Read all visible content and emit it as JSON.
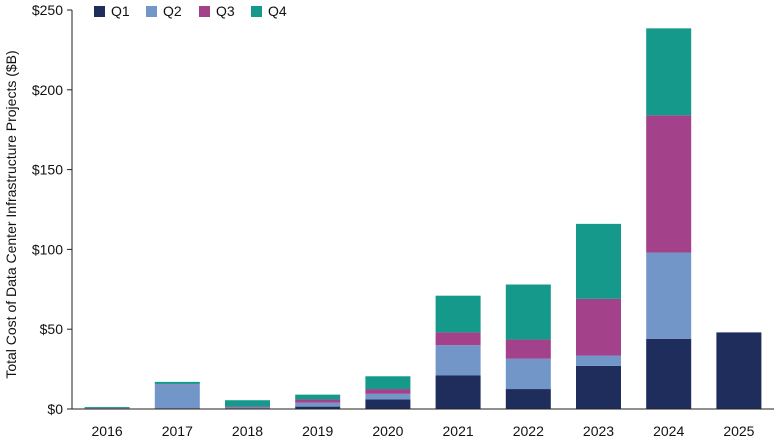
{
  "chart_data": {
    "type": "bar",
    "stacked": true,
    "categories": [
      "2016",
      "2017",
      "2018",
      "2019",
      "2020",
      "2021",
      "2022",
      "2023",
      "2024",
      "2025"
    ],
    "series": [
      {
        "name": "Q1",
        "color": "#1f2d5c",
        "values": [
          0.3,
          0.5,
          0.5,
          1.5,
          6,
          21,
          12.5,
          27,
          44,
          48
        ]
      },
      {
        "name": "Q2",
        "color": "#7196c7",
        "values": [
          0.2,
          15,
          0.5,
          2.5,
          3.5,
          19,
          19,
          6.5,
          54,
          0
        ]
      },
      {
        "name": "Q3",
        "color": "#a3418a",
        "values": [
          0.1,
          0.2,
          0.5,
          2,
          3,
          8,
          12,
          35.5,
          86,
          0
        ]
      },
      {
        "name": "Q4",
        "color": "#14998a",
        "values": [
          0.6,
          1.3,
          4,
          3,
          8,
          23,
          34.5,
          47,
          54.5,
          0
        ]
      }
    ],
    "ylabel": "Total Cost of Data Center Infrastructure Projects ($B)",
    "xlabel": "",
    "ylim": [
      0,
      250
    ],
    "yticks": [
      0,
      50,
      100,
      150,
      200,
      250
    ],
    "ytick_labels": [
      "$0",
      "$50",
      "$100",
      "$150",
      "$200",
      "$250"
    ],
    "grid": false,
    "legend_position": "top-left"
  }
}
